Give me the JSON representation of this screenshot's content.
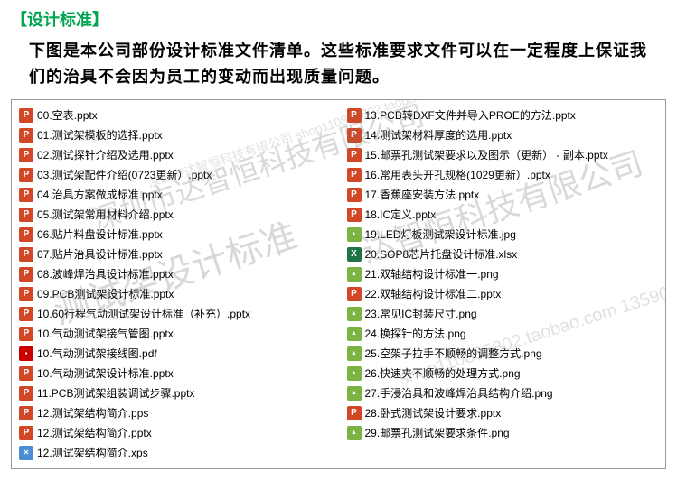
{
  "header": "【设计标准】",
  "description": "下图是本公司部份设计标准文件清单。这些标准要求文件可以在一定程度上保证我们的治具不会因为员工的变动而出现质量问题。",
  "watermarks": {
    "wm1": "深圳市达智恒科技有限公司",
    "wm2": "测试架设计标准",
    "wm3": "达智恒科技有限公司",
    "wm4": "shop110895802.taobao.com\n13590321036",
    "wm5": "深圳市达智恒科技有限公司\nshop110895802.taobao.com\n13590321036"
  },
  "left_files": [
    {
      "icon": "pptx",
      "name": "00.空表.pptx"
    },
    {
      "icon": "pptx",
      "name": "01.测试架模板的选择.pptx"
    },
    {
      "icon": "pptx",
      "name": "02.测试探针介绍及选用.pptx"
    },
    {
      "icon": "pptx",
      "name": "03.测试架配件介绍(0723更新）.pptx"
    },
    {
      "icon": "pptx",
      "name": "04.治具方案做成标准.pptx"
    },
    {
      "icon": "pptx",
      "name": "05.测试架常用材料介绍.pptx"
    },
    {
      "icon": "pptx",
      "name": "06.贴片料盘设计标准.pptx"
    },
    {
      "icon": "pptx",
      "name": "07.贴片治具设计标准.pptx"
    },
    {
      "icon": "pptx",
      "name": "08.波峰焊治具设计标准.pptx"
    },
    {
      "icon": "pptx",
      "name": "09.PCB测试架设计标准.pptx"
    },
    {
      "icon": "pptx",
      "name": "10.60行程气动测试架设计标准（补充）.pptx"
    },
    {
      "icon": "pptx",
      "name": "10.气动测试架接气管图.pptx"
    },
    {
      "icon": "pdf",
      "name": "10.气动测试架接线图.pdf"
    },
    {
      "icon": "pptx",
      "name": "10.气动测试架设计标准.pptx"
    },
    {
      "icon": "pptx",
      "name": "11.PCB测试架组装调试步骤.pptx"
    },
    {
      "icon": "pps",
      "name": "12.测试架结构简介.pps"
    },
    {
      "icon": "pptx",
      "name": "12.测试架结构简介.pptx"
    },
    {
      "icon": "xps",
      "name": "12.测试架结构简介.xps"
    }
  ],
  "right_files": [
    {
      "icon": "pptx",
      "name": "13.PCB转DXF文件并导入PROE的方法.pptx"
    },
    {
      "icon": "pptx",
      "name": "14.测试架材料厚度的选用.pptx"
    },
    {
      "icon": "pptx",
      "name": "15.邮票孔测试架要求以及图示（更新） - 副本.pptx"
    },
    {
      "icon": "pptx",
      "name": "16.常用表头开孔规格(1029更新）.pptx"
    },
    {
      "icon": "pptx",
      "name": "17.香蕉座安装方法.pptx"
    },
    {
      "icon": "pptx",
      "name": "18.IC定义.pptx"
    },
    {
      "icon": "jpg",
      "name": "19.LED灯板测试架设计标准.jpg"
    },
    {
      "icon": "xlsx",
      "name": "20.SOP8芯片托盘设计标准.xlsx"
    },
    {
      "icon": "png",
      "name": "21.双轴结构设计标准一.png"
    },
    {
      "icon": "pptx",
      "name": "22.双轴结构设计标准二.pptx"
    },
    {
      "icon": "png",
      "name": "23.常见IC封装尺寸.png"
    },
    {
      "icon": "png",
      "name": "24.换探针的方法.png"
    },
    {
      "icon": "png",
      "name": "25.空架子拉手不顺畅的调整方式.png"
    },
    {
      "icon": "png",
      "name": "26.快速夹不顺畅的处理方式.png"
    },
    {
      "icon": "png",
      "name": "27.手浸治具和波峰焊治具结构介绍.png"
    },
    {
      "icon": "pptx",
      "name": "28.卧式测试架设计要求.pptx"
    },
    {
      "icon": "png",
      "name": "29.邮票孔测试架要求条件.png"
    }
  ]
}
